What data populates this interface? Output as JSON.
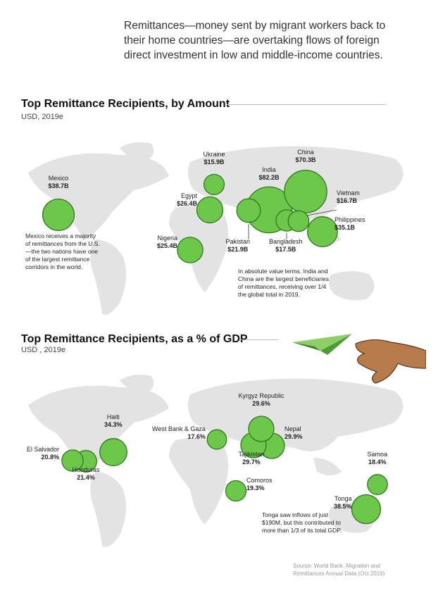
{
  "intro_text": "Remittances—money sent by migrant workers back to their home countries—are overtaking flows of foreign direct investment in low and middle-income countries.",
  "colors": {
    "bubble_fill": "#6cc74a",
    "bubble_stroke": "#2f7a1d",
    "land": "#e3e3e3",
    "rule": "#bdbdbd"
  },
  "amount_section": {
    "title": "Top Remittance Recipients, by Amount",
    "subtitle": "USD, 2019e",
    "mexico_note": "Mexico receives a majority of remittances from the U.S.—the two nations have one of the largest remittance corridors in the world.",
    "india_china_note": "In absolute value terms, India and China are the largest beneficiaries of remittances, receiving over 1/4 the global total in 2019."
  },
  "gdp_section": {
    "title": "Top Remittance Recipients, as a % of GDP",
    "subtitle": "USD , 2019e",
    "tonga_note": "Tonga saw inflows of just $190M, but this contributed to more than 1/3 of its total GDP."
  },
  "source": "Source: World Bank, Migration and Remittances Annual Data (Oct 2019)",
  "chart_data": [
    {
      "type": "bubble-map",
      "title": "Top Remittance Recipients, by Amount",
      "subtitle": "USD, 2019e",
      "unit": "USD billions",
      "points": [
        {
          "country": "India",
          "value": 82.2,
          "label": "$82.2B"
        },
        {
          "country": "China",
          "value": 70.3,
          "label": "$70.3B"
        },
        {
          "country": "Mexico",
          "value": 38.7,
          "label": "$38.7B"
        },
        {
          "country": "Philippines",
          "value": 35.1,
          "label": "$35.1B"
        },
        {
          "country": "Egypt",
          "value": 26.4,
          "label": "$26.4B"
        },
        {
          "country": "Nigeria",
          "value": 25.4,
          "label": "$25.4B"
        },
        {
          "country": "Pakistan",
          "value": 21.9,
          "label": "$21.9B"
        },
        {
          "country": "Bangladesh",
          "value": 17.5,
          "label": "$17.5B"
        },
        {
          "country": "Vietnam",
          "value": 16.7,
          "label": "$16.7B"
        },
        {
          "country": "Ukraine",
          "value": 15.9,
          "label": "$15.9B"
        }
      ]
    },
    {
      "type": "bubble-map",
      "title": "Top Remittance Recipients, as a % of GDP",
      "subtitle": "USD , 2019e",
      "unit": "% of GDP",
      "points": [
        {
          "country": "Tonga",
          "value": 38.5,
          "label": "38.5%"
        },
        {
          "country": "Haiti",
          "value": 34.3,
          "label": "34.3%"
        },
        {
          "country": "Nepal",
          "value": 29.9,
          "label": "29.9%"
        },
        {
          "country": "Tajikistan",
          "value": 29.7,
          "label": "29.7%"
        },
        {
          "country": "Kyrgyz Republic",
          "value": 29.6,
          "label": "29.6%"
        },
        {
          "country": "Honduras",
          "value": 21.4,
          "label": "21.4%"
        },
        {
          "country": "El Salvador",
          "value": 20.8,
          "label": "20.8%"
        },
        {
          "country": "Comoros",
          "value": 19.3,
          "label": "19.3%"
        },
        {
          "country": "Samoa",
          "value": 18.4,
          "label": "18.4%"
        },
        {
          "country": "West Bank & Gaza",
          "value": 17.6,
          "label": "17.6%"
        }
      ]
    }
  ]
}
